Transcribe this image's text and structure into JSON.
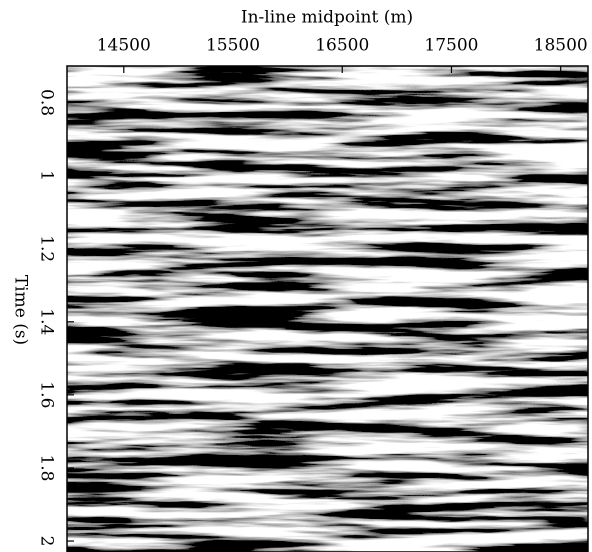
{
  "chart_data": {
    "type": "image",
    "title": "In-line midpoint (m)",
    "y_label": "Time (s)",
    "xlim": [
      13980,
      18750
    ],
    "xticks": [
      14500,
      15500,
      16500,
      17500,
      18500
    ],
    "ylim": [
      0.7,
      2.03
    ],
    "yticks": [
      0.8,
      1,
      1.2,
      1.4,
      1.6,
      1.8,
      2
    ],
    "y_inverted": true
  }
}
